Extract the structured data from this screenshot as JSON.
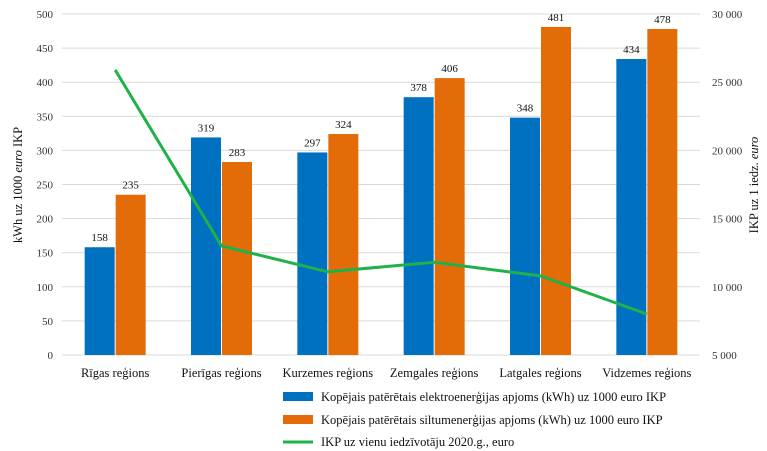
{
  "chart_data": {
    "type": "bar",
    "categories": [
      "Rīgas reģions",
      "Pierīgas reģions",
      "Kurzemes reģions",
      "Zemgales reģions",
      "Latgales reģions",
      "Vidzemes reģions"
    ],
    "series": [
      {
        "name": "Kopējais patērētais elektroenerģijas apjoms (kWh) uz 1000 euro IKP",
        "type": "bar",
        "axis": "left",
        "color": "#0070C0",
        "values": [
          158,
          319,
          297,
          378,
          348,
          434
        ],
        "labels": [
          "158",
          "319",
          "297",
          "378",
          "348",
          "434"
        ]
      },
      {
        "name": "Kopējais patērētais siltumenerģijas apjoms (kWh) uz 1000 euro IKP",
        "type": "bar",
        "axis": "left",
        "color": "#E36C09",
        "values": [
          235,
          283,
          324,
          406,
          481,
          478
        ],
        "labels": [
          "235",
          "283",
          "324",
          "406",
          "481",
          "478"
        ]
      },
      {
        "name": "IKP uz vienu iedzīvotāju 2020.g., euro",
        "type": "line",
        "axis": "right",
        "color": "#1FB24A",
        "values": [
          25900,
          13000,
          11100,
          11800,
          10800,
          8000
        ]
      }
    ],
    "ylabel_parts": [
      "kWh uz 1000 ",
      "euro",
      " IKP"
    ],
    "y2label_parts": [
      "IKP uz 1 iedz. ",
      "euro"
    ],
    "ylim": [
      0,
      500
    ],
    "yticks": [
      0,
      50,
      100,
      150,
      200,
      250,
      300,
      350,
      400,
      450,
      500
    ],
    "ytick_labels": [
      "0",
      "50",
      "100",
      "150",
      "200",
      "250",
      "300",
      "350",
      "400",
      "450",
      "500"
    ],
    "y2lim": [
      5000,
      30000
    ],
    "y2ticks": [
      5000,
      10000,
      15000,
      20000,
      25000,
      30000
    ],
    "y2tick_labels": [
      "5 000",
      "10 000",
      "15 000",
      "20 000",
      "25 000",
      "30 000"
    ],
    "grid": true,
    "legend_position": "bottom"
  }
}
